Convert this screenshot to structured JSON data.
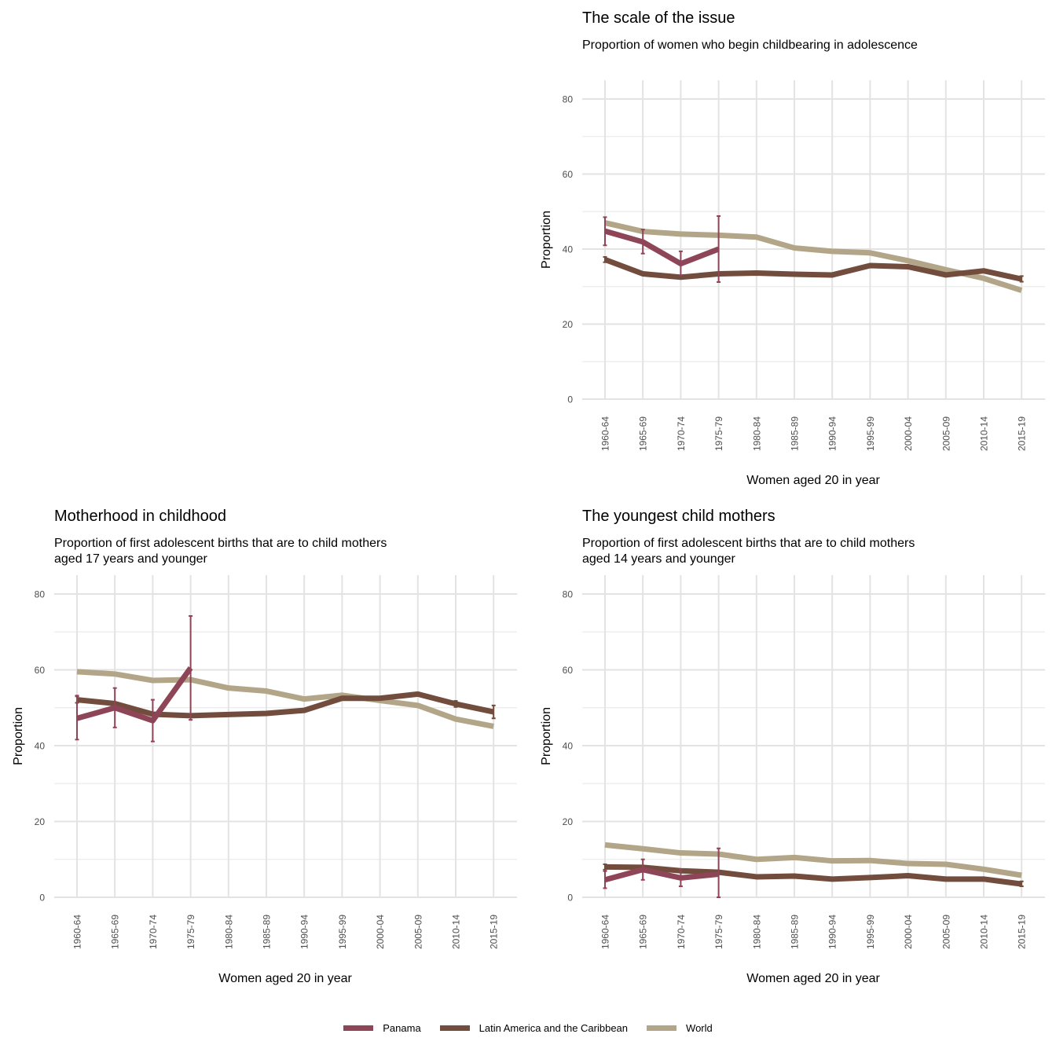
{
  "colors": {
    "Panama": "#8e4557",
    "Latin America and the Caribbean": "#724c3c",
    "World": "#b2a588"
  },
  "legend": [
    "Panama",
    "Latin America and the Caribbean",
    "World"
  ],
  "chart_data": [
    {
      "type": "line",
      "title": "The scale of the issue",
      "subtitle": "Proportion of women who begin childbearing in adolescence",
      "xlabel": "Women aged 20 in year",
      "ylabel": "Proportion",
      "ylim": [
        0,
        85
      ],
      "yticks": [
        0,
        20,
        40,
        60,
        80
      ],
      "grid": true,
      "categories": [
        "1960-64",
        "1965-69",
        "1970-74",
        "1975-79",
        "1980-84",
        "1985-89",
        "1990-94",
        "1995-99",
        "2000-04",
        "2005-09",
        "2010-14",
        "2015-19"
      ],
      "series": [
        {
          "name": "World",
          "values": [
            47.0,
            44.7,
            44.0,
            43.7,
            43.2,
            40.3,
            39.4,
            39.0,
            36.9,
            34.5,
            32.2,
            29.0
          ]
        },
        {
          "name": "Latin America and the Caribbean",
          "values": [
            37.2,
            33.4,
            32.5,
            33.4,
            33.6,
            33.3,
            33.1,
            35.6,
            35.3,
            33.1,
            34.2,
            32.0
          ],
          "error_low": [
            36.5,
            null,
            null,
            null,
            null,
            null,
            null,
            null,
            null,
            null,
            null,
            31.3
          ],
          "error_high": [
            37.9,
            null,
            null,
            null,
            null,
            null,
            null,
            null,
            null,
            null,
            null,
            32.8
          ]
        },
        {
          "name": "Panama",
          "values": [
            44.8,
            41.9,
            36.1,
            40.0,
            null,
            null,
            null,
            null,
            null,
            null,
            null,
            null
          ],
          "error_low": [
            41.0,
            38.8,
            33.0,
            31.2
          ],
          "error_high": [
            48.5,
            45.2,
            39.4,
            48.8
          ]
        }
      ]
    },
    {
      "type": "line",
      "title": "Motherhood in childhood",
      "subtitle": "Proportion of first adolescent births that are to child mothers\naged 17 years and younger",
      "xlabel": "Women aged 20 in year",
      "ylabel": "Proportion",
      "ylim": [
        0,
        85
      ],
      "yticks": [
        0,
        20,
        40,
        60,
        80
      ],
      "grid": true,
      "categories": [
        "1960-64",
        "1965-69",
        "1970-74",
        "1975-79",
        "1980-84",
        "1985-89",
        "1990-94",
        "1995-99",
        "2000-04",
        "2005-09",
        "2010-14",
        "2015-19"
      ],
      "series": [
        {
          "name": "World",
          "values": [
            59.5,
            58.9,
            57.2,
            57.4,
            55.2,
            54.4,
            52.3,
            53.3,
            51.9,
            50.6,
            47.0,
            45.1
          ]
        },
        {
          "name": "Latin America and the Caribbean",
          "values": [
            52.1,
            51.1,
            48.3,
            47.9,
            48.2,
            48.5,
            49.3,
            52.5,
            52.5,
            53.6,
            51.0,
            48.9
          ],
          "error_low": [
            51.3,
            null,
            null,
            null,
            null,
            null,
            null,
            null,
            null,
            null,
            50.2,
            47.2
          ],
          "error_high": [
            53.0,
            null,
            null,
            null,
            null,
            null,
            null,
            null,
            null,
            null,
            51.8,
            50.6
          ]
        },
        {
          "name": "Panama",
          "values": [
            47.2,
            50.0,
            46.6,
            60.5,
            null,
            null,
            null,
            null,
            null,
            null,
            null,
            null
          ],
          "error_low": [
            41.6,
            44.8,
            41.1,
            46.8
          ],
          "error_high": [
            53.2,
            55.2,
            52.1,
            74.2
          ]
        }
      ]
    },
    {
      "type": "line",
      "title": "The youngest child mothers",
      "subtitle": "Proportion of first adolescent births that are to child mothers\naged 14 years and younger",
      "xlabel": "Women aged 20 in year",
      "ylabel": "Proportion",
      "ylim": [
        0,
        85
      ],
      "yticks": [
        0,
        20,
        40,
        60,
        80
      ],
      "grid": true,
      "categories": [
        "1960-64",
        "1965-69",
        "1970-74",
        "1975-79",
        "1980-84",
        "1985-89",
        "1990-94",
        "1995-99",
        "2000-04",
        "2005-09",
        "2010-14",
        "2015-19"
      ],
      "series": [
        {
          "name": "World",
          "values": [
            13.8,
            12.8,
            11.7,
            11.4,
            10.0,
            10.5,
            9.6,
            9.7,
            8.9,
            8.7,
            7.4,
            5.8
          ]
        },
        {
          "name": "Latin America and the Caribbean",
          "values": [
            8.0,
            7.9,
            7.0,
            6.6,
            5.4,
            5.6,
            4.8,
            5.2,
            5.7,
            4.8,
            4.8,
            3.5
          ],
          "error_low": [
            7.3,
            null,
            null,
            null,
            null,
            null,
            null,
            null,
            null,
            null,
            null,
            2.9
          ],
          "error_high": [
            8.7,
            null,
            null,
            null,
            null,
            null,
            null,
            null,
            null,
            null,
            null,
            4.2
          ]
        },
        {
          "name": "Panama",
          "values": [
            4.6,
            7.3,
            5.1,
            6.1,
            null,
            null,
            null,
            null,
            null,
            null,
            null,
            null
          ],
          "error_low": [
            2.4,
            4.6,
            2.9,
            0.0
          ],
          "error_high": [
            6.9,
            10.0,
            7.4,
            12.9
          ]
        }
      ]
    }
  ]
}
